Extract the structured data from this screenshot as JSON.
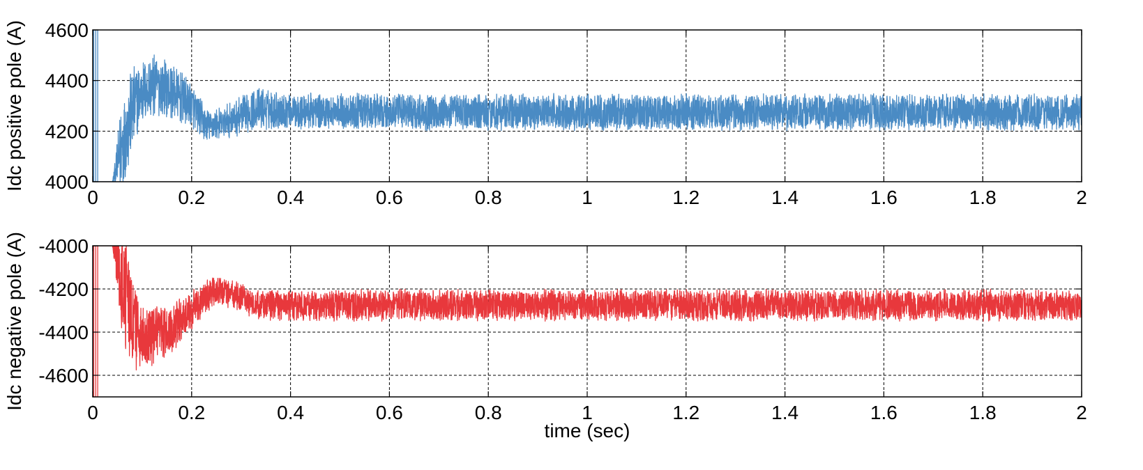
{
  "chart_data": [
    {
      "type": "line",
      "id": "positive-pole",
      "ylabel": "Idc positive pole (A)",
      "xlabel": "",
      "xlim": [
        0,
        2
      ],
      "ylim": [
        4000,
        4600
      ],
      "xticks": [
        "0",
        "0.2",
        "0.4",
        "0.6",
        "0.8",
        "1",
        "1.2",
        "1.4",
        "1.6",
        "1.8",
        "2"
      ],
      "yticks": [
        "4000",
        "4200",
        "4400",
        "4600"
      ],
      "grid": true,
      "series": [
        {
          "color": "#4a8bc4",
          "envelope": {
            "x": [
              0.0,
              0.04,
              0.06,
              0.08,
              0.1,
              0.13,
              0.16,
              0.2,
              0.23,
              0.26,
              0.3,
              0.33,
              0.4,
              0.6,
              1.0,
              1.4,
              1.8,
              2.0
            ],
            "mean": [
              4000,
              4000,
              4150,
              4280,
              4360,
              4380,
              4360,
              4300,
              4220,
              4230,
              4260,
              4290,
              4280,
              4275,
              4275,
              4275,
              4275,
              4275
            ],
            "amplitude": [
              0,
              0,
              180,
              150,
              110,
              110,
              100,
              80,
              60,
              55,
              70,
              75,
              65,
              65,
              65,
              65,
              65,
              65
            ]
          }
        }
      ]
    },
    {
      "type": "line",
      "id": "negative-pole",
      "ylabel": "Idc negative pole (A)",
      "xlabel": "time (sec)",
      "xlim": [
        0,
        2
      ],
      "ylim": [
        -4700,
        -4000
      ],
      "xticks": [
        "0",
        "0.2",
        "0.4",
        "0.6",
        "0.8",
        "1",
        "1.2",
        "1.4",
        "1.6",
        "1.8",
        "2"
      ],
      "yticks": [
        "-4000",
        "-4200",
        "-4400",
        "-4600"
      ],
      "grid": true,
      "series": [
        {
          "color": "#e8383c",
          "envelope": {
            "x": [
              0.0,
              0.04,
              0.06,
              0.08,
              0.1,
              0.13,
              0.16,
              0.2,
              0.23,
              0.26,
              0.3,
              0.33,
              0.4,
              0.6,
              1.0,
              1.4,
              1.8,
              2.0
            ],
            "mean": [
              -4000,
              -4000,
              -4150,
              -4350,
              -4420,
              -4420,
              -4380,
              -4300,
              -4230,
              -4210,
              -4240,
              -4270,
              -4280,
              -4275,
              -4275,
              -4275,
              -4275,
              -4275
            ],
            "amplitude": [
              0,
              0,
              250,
              200,
              150,
              120,
              100,
              80,
              70,
              60,
              60,
              65,
              65,
              65,
              65,
              65,
              65,
              65
            ]
          }
        }
      ]
    }
  ]
}
